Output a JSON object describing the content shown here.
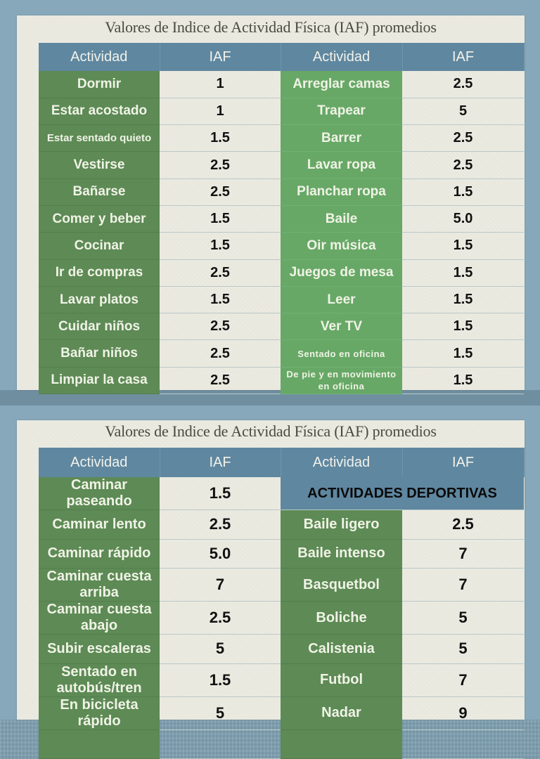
{
  "slide1": {
    "title": "Valores de Indice de Actividad Física (IAF) promedios",
    "headers": [
      "Actividad",
      "IAF",
      "Actividad",
      "IAF"
    ],
    "rows": [
      {
        "a1": "Dormir",
        "v1": "1",
        "a2": "Arreglar camas",
        "v2": "2.5"
      },
      {
        "a1": "Estar acostado",
        "v1": "1",
        "a2": "Trapear",
        "v2": "5"
      },
      {
        "a1": "Estar sentado quieto",
        "v1": "1.5",
        "a2": "Barrer",
        "v2": "2.5"
      },
      {
        "a1": "Vestirse",
        "v1": "2.5",
        "a2": "Lavar ropa",
        "v2": "2.5"
      },
      {
        "a1": "Bañarse",
        "v1": "2.5",
        "a2": "Planchar ropa",
        "v2": "1.5"
      },
      {
        "a1": "Comer y beber",
        "v1": "1.5",
        "a2": "Baile",
        "v2": "5.0"
      },
      {
        "a1": "Cocinar",
        "v1": "1.5",
        "a2": "Oir música",
        "v2": "1.5"
      },
      {
        "a1": "Ir de compras",
        "v1": "2.5",
        "a2": "Juegos de mesa",
        "v2": "1.5"
      },
      {
        "a1": "Lavar platos",
        "v1": "1.5",
        "a2": "Leer",
        "v2": "1.5"
      },
      {
        "a1": "Cuidar niños",
        "v1": "2.5",
        "a2": "Ver TV",
        "v2": "1.5"
      },
      {
        "a1": "Bañar niños",
        "v1": "2.5",
        "a2": "Sentado en oficina",
        "v2": "1.5"
      },
      {
        "a1": "Limpiar la casa",
        "v1": "2.5",
        "a2": "De pie y en movimiento en oficina",
        "v2": "1.5"
      }
    ]
  },
  "slide2": {
    "title": "Valores de Indice de Actividad Física (IAF) promedios",
    "headers": [
      "Actividad",
      "IAF",
      "Actividad",
      "IAF"
    ],
    "section_label": "ACTIVIDADES DEPORTIVAS",
    "rows": [
      {
        "a1": "Caminar paseando",
        "v1": "1.5",
        "a2": "",
        "v2": ""
      },
      {
        "a1": "Caminar lento",
        "v1": "2.5",
        "a2": "Baile ligero",
        "v2": "2.5"
      },
      {
        "a1": "Caminar rápido",
        "v1": "5.0",
        "a2": "Baile intenso",
        "v2": "7"
      },
      {
        "a1": "Caminar cuesta arriba",
        "v1": "7",
        "a2": "Basquetbol",
        "v2": "7"
      },
      {
        "a1": "Caminar cuesta abajo",
        "v1": "2.5",
        "a2": "Boliche",
        "v2": "5"
      },
      {
        "a1": "Subir escaleras",
        "v1": "5",
        "a2": "Calistenia",
        "v2": "5"
      },
      {
        "a1": "Sentado en autobús/tren",
        "v1": "1.5",
        "a2": "Futbol",
        "v2": "7"
      },
      {
        "a1": "En bicicleta rápido",
        "v1": "5",
        "a2": "Nadar",
        "v2": "9"
      }
    ]
  }
}
